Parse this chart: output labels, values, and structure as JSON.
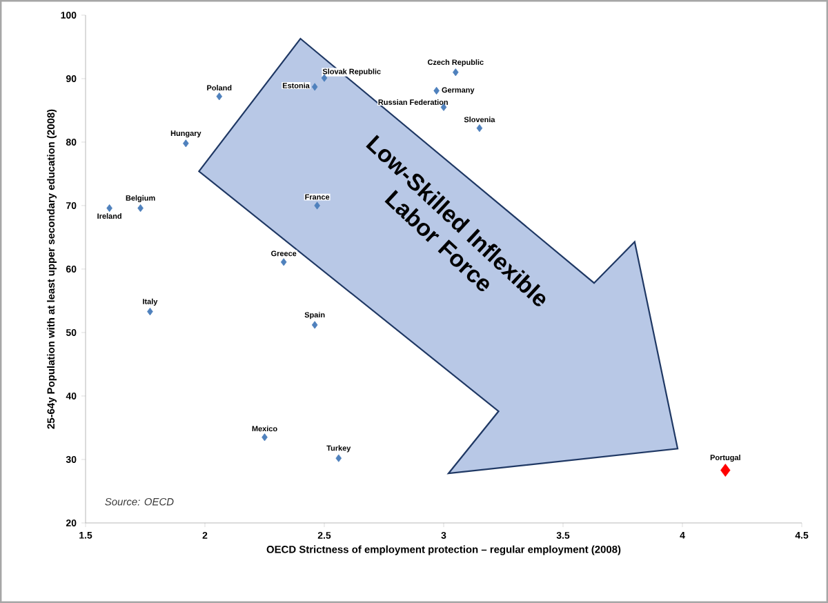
{
  "chart_data": {
    "type": "scatter",
    "xlabel": "OECD Strictness of employment protection – regular employment (2008)",
    "ylabel": "25-64y Population with at least upper secondary education (2008)",
    "xlim": [
      1.5,
      4.5
    ],
    "xticks": [
      1.5,
      2,
      2.5,
      3,
      3.5,
      4,
      4.5
    ],
    "ylim": [
      20,
      100
    ],
    "yticks": [
      20,
      30,
      40,
      50,
      60,
      70,
      80,
      90,
      100
    ],
    "marker": "diamond",
    "grid": false,
    "annotations": [
      "Source: OECD",
      {
        "text": "Low-Skilled Inflexible Labor Force"
      }
    ],
    "series": [
      {
        "name": "Ireland",
        "color": "#4f81bd",
        "x": [
          1.6
        ],
        "values": [
          69.6
        ]
      },
      {
        "name": "Belgium",
        "color": "#4f81bd",
        "x": [
          1.73
        ],
        "values": [
          69.6
        ]
      },
      {
        "name": "Hungary",
        "color": "#4f81bd",
        "x": [
          1.92
        ],
        "values": [
          79.8
        ]
      },
      {
        "name": "Poland",
        "color": "#4f81bd",
        "x": [
          2.06
        ],
        "values": [
          87.2
        ]
      },
      {
        "name": "Estonia",
        "color": "#4f81bd",
        "x": [
          2.46
        ],
        "values": [
          88.7
        ]
      },
      {
        "name": "Slovak Republic",
        "color": "#4f81bd",
        "x": [
          2.5
        ],
        "values": [
          90.1
        ]
      },
      {
        "name": "France",
        "color": "#4f81bd",
        "x": [
          2.47
        ],
        "values": [
          70.0
        ]
      },
      {
        "name": "Greece",
        "color": "#4f81bd",
        "x": [
          2.33
        ],
        "values": [
          61.1
        ]
      },
      {
        "name": "Italy",
        "color": "#4f81bd",
        "x": [
          1.77
        ],
        "values": [
          53.3
        ]
      },
      {
        "name": "Spain",
        "color": "#4f81bd",
        "x": [
          2.46
        ],
        "values": [
          51.2
        ]
      },
      {
        "name": "Mexico",
        "color": "#4f81bd",
        "x": [
          2.25
        ],
        "values": [
          33.5
        ]
      },
      {
        "name": "Turkey",
        "color": "#4f81bd",
        "x": [
          2.56
        ],
        "values": [
          30.2
        ]
      },
      {
        "name": "Czech Republic",
        "color": "#4f81bd",
        "x": [
          3.05
        ],
        "values": [
          91.0
        ]
      },
      {
        "name": "Germany",
        "color": "#4f81bd",
        "x": [
          2.97
        ],
        "values": [
          88.1
        ]
      },
      {
        "name": "Russian Federation",
        "color": "#4f81bd",
        "x": [
          3.0
        ],
        "values": [
          85.5
        ]
      },
      {
        "name": "Slovenia",
        "color": "#4f81bd",
        "x": [
          3.15
        ],
        "values": [
          82.2
        ]
      },
      {
        "name": "Portugal",
        "color": "#ff0000",
        "x": [
          4.18
        ],
        "values": [
          28.3
        ]
      }
    ]
  }
}
